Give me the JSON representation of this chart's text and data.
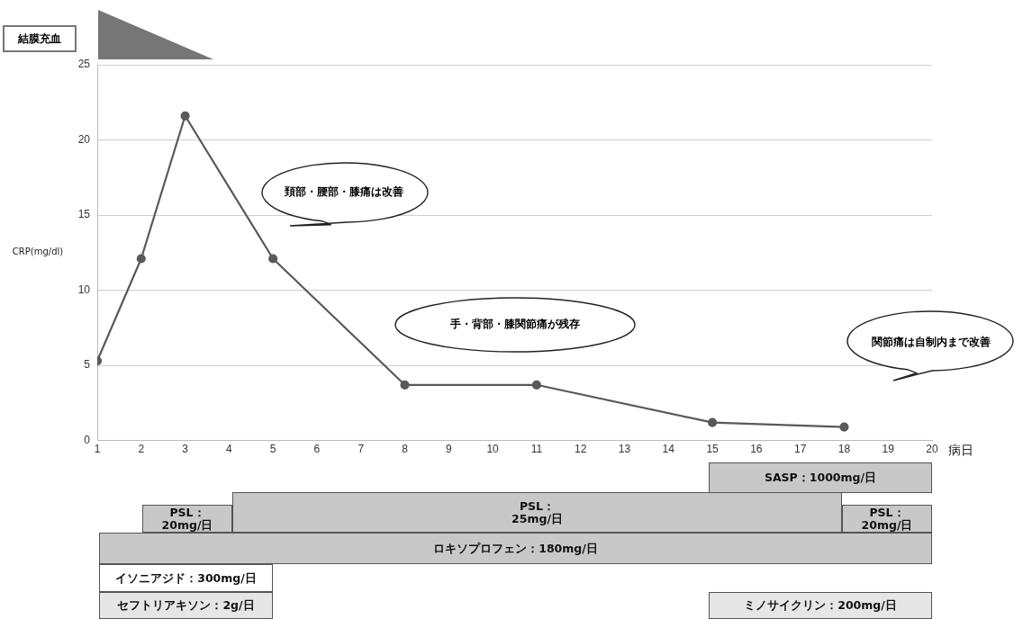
{
  "chart_data": [
    {
      "type": "line",
      "xlabel": "病日",
      "ylabel": "CRP(mg/dl)",
      "x": [
        1,
        2,
        3,
        5,
        8,
        11,
        15,
        18
      ],
      "series": [
        {
          "color": "#595959",
          "values": [
            5.3,
            12.1,
            21.6,
            12.1,
            3.7,
            3.7,
            1.2,
            0.9
          ]
        }
      ],
      "xlim": [
        1,
        20
      ],
      "xticks": [
        1,
        2,
        3,
        4,
        5,
        6,
        7,
        8,
        9,
        10,
        11,
        12,
        13,
        14,
        15,
        16,
        17,
        18,
        19,
        20
      ],
      "ylim": [
        0,
        25
      ],
      "yticks": [
        0,
        5,
        10,
        15,
        20,
        25
      ],
      "grid": "y",
      "marker": "circle",
      "line_style": "solid",
      "legend": false,
      "annotations": [
        "結膜充血",
        "頚部・腰部・膝痛は改善",
        "手・背部・膝関節痛が残存",
        "関節痛は自制内まで改善"
      ]
    },
    {
      "type": "other",
      "annotations": [
        "SASP：1000mg/日",
        "PSL：\n20mg/日",
        "PSL：\n25mg/日",
        "PSL：\n20mg/日",
        "ロキソプロフェン：180mg/日",
        "イソニアジド：300mg/日",
        "セフトリアキソン：2g/日",
        "ミノサイクリン：200mg/日"
      ]
    }
  ]
}
